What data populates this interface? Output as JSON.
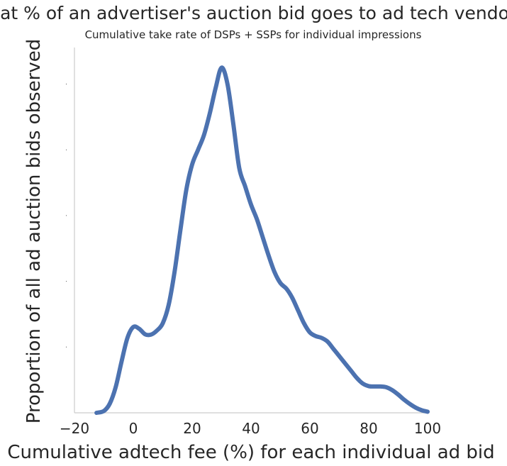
{
  "chart_data": {
    "type": "line",
    "title": "What % of an advertiser's auction bid goes to ad tech vendors?",
    "subtitle": "Cumulative take rate of DSPs + SSPs for individual impressions",
    "xlabel": "Cumulative adtech fee (%) for each individual ad bid",
    "ylabel": "Proportion of all ad auction bids observed",
    "xlim": [
      -20,
      100
    ],
    "ylim": [
      0,
      1.0
    ],
    "xticks": [
      -20,
      0,
      20,
      40,
      60,
      80,
      100
    ],
    "xtick_labels": [
      "−20",
      "0",
      "20",
      "40",
      "60",
      "80",
      "100"
    ],
    "yticks": [
      0.18,
      0.36,
      0.54,
      0.72,
      0.9
    ],
    "grid": false,
    "series": [
      {
        "color": "#4c72b0",
        "x": [
          -12.5,
          -10,
          -8,
          -6,
          -4,
          -2,
          0,
          2,
          4,
          6,
          8,
          10,
          12,
          14,
          16,
          18,
          20,
          22,
          24,
          26,
          28,
          30,
          32,
          34,
          36,
          38,
          40,
          42,
          44,
          46,
          48,
          50,
          52,
          54,
          56,
          58,
          60,
          62,
          64,
          66,
          68,
          70,
          72,
          74,
          76,
          78,
          80,
          82,
          84,
          86,
          88,
          90,
          92,
          94,
          96,
          98,
          100
        ],
        "y": [
          0.0,
          0.005,
          0.025,
          0.07,
          0.14,
          0.205,
          0.235,
          0.23,
          0.215,
          0.214,
          0.225,
          0.245,
          0.295,
          0.385,
          0.5,
          0.61,
          0.68,
          0.72,
          0.76,
          0.82,
          0.89,
          0.945,
          0.9,
          0.79,
          0.67,
          0.62,
          0.57,
          0.53,
          0.48,
          0.43,
          0.385,
          0.355,
          0.34,
          0.315,
          0.28,
          0.245,
          0.22,
          0.21,
          0.205,
          0.195,
          0.175,
          0.155,
          0.135,
          0.115,
          0.095,
          0.08,
          0.073,
          0.072,
          0.072,
          0.07,
          0.062,
          0.05,
          0.036,
          0.024,
          0.014,
          0.007,
          0.003
        ]
      }
    ]
  }
}
